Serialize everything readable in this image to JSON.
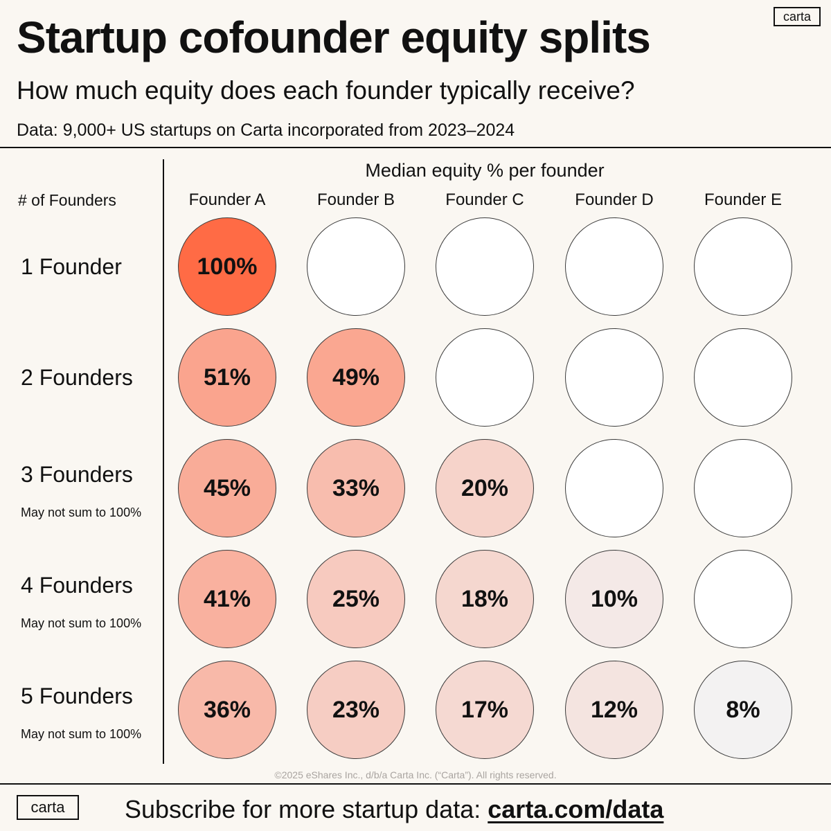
{
  "header": {
    "title": "Startup cofounder equity splits",
    "subtitle": "How much equity does each founder typically receive?",
    "source": "Data: 9,000+ US startups on Carta incorporated from 2023–2024",
    "logo": "carta"
  },
  "footer": {
    "copyright": "©2025 eShares Inc., d/b/a Carta Inc. (“Carta”). All rights reserved.",
    "logo": "carta",
    "subscribe_text": "Subscribe for more startup data:",
    "subscribe_link": "carta.com/data"
  },
  "chart_data": {
    "type": "table",
    "title": "Median equity % per founder",
    "row_header": "# of Founders",
    "columns": [
      "Founder A",
      "Founder B",
      "Founder C",
      "Founder D",
      "Founder E"
    ],
    "rows": [
      {
        "label": "1 Founder",
        "note": "",
        "values": [
          100,
          null,
          null,
          null,
          null
        ]
      },
      {
        "label": "2 Founders",
        "note": "",
        "values": [
          51,
          49,
          null,
          null,
          null
        ]
      },
      {
        "label": "3 Founders",
        "note": "May not sum to 100%",
        "values": [
          45,
          33,
          20,
          null,
          null
        ]
      },
      {
        "label": "4 Founders",
        "note": "May not sum to 100%",
        "values": [
          41,
          25,
          18,
          10,
          null
        ]
      },
      {
        "label": "5 Founders",
        "note": "May not sum to 100%",
        "values": [
          36,
          23,
          17,
          12,
          8
        ]
      }
    ],
    "value_suffix": "%",
    "colors": {
      "high": "#ff6b45",
      "low": "#f3f2f2",
      "empty": "#ffffff"
    }
  }
}
